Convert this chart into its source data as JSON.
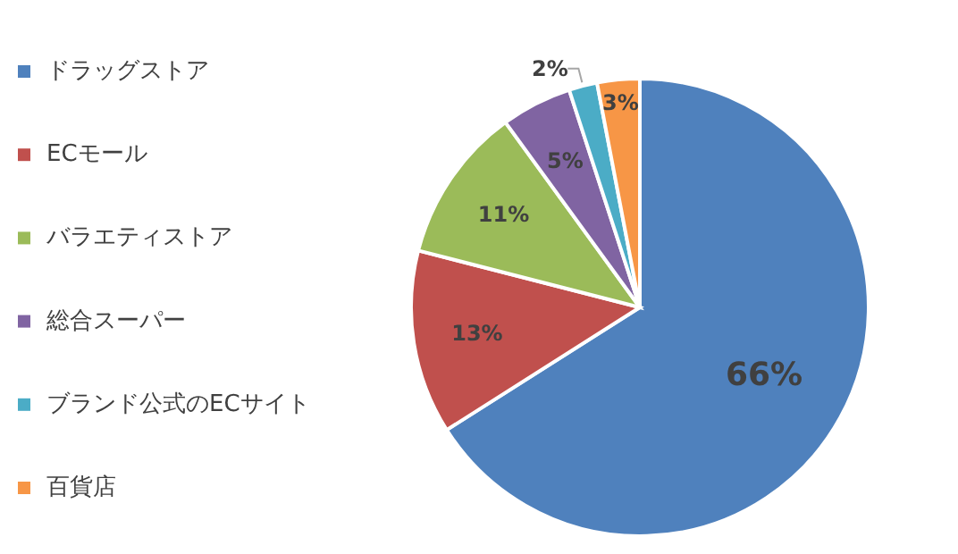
{
  "chart_data": {
    "type": "pie",
    "categories": [
      "ドラッグストア",
      "ECモール",
      "バラエティストア",
      "総合スーパー",
      "ブランド公式のECサイト",
      "百貨店"
    ],
    "values": [
      66,
      13,
      11,
      5,
      2,
      3
    ],
    "colors": [
      "#4f81bd",
      "#c0504d",
      "#9bbb59",
      "#8064a2",
      "#4bacc6",
      "#f79646"
    ],
    "value_labels": [
      "66%",
      "13%",
      "11%",
      "5%",
      "2%",
      "3%"
    ],
    "legend": "left"
  }
}
